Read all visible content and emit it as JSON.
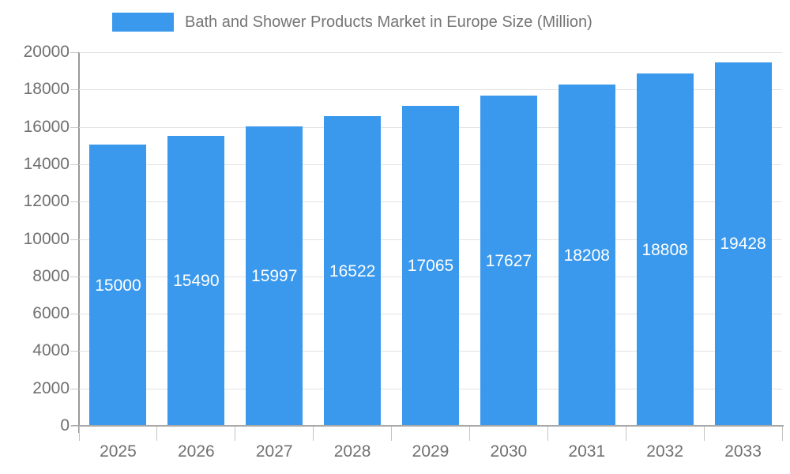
{
  "legend": {
    "label": "Bath and Shower Products Market in Europe Size (Million)"
  },
  "chart_data": {
    "type": "bar",
    "title": "Bath and Shower Products Market in Europe Size (Million)",
    "categories": [
      "2025",
      "2026",
      "2027",
      "2028",
      "2029",
      "2030",
      "2031",
      "2032",
      "2033"
    ],
    "values": [
      15000,
      15490,
      15997,
      16522,
      17065,
      17627,
      18208,
      18808,
      19428
    ],
    "xlabel": "",
    "ylabel": "",
    "ylim": [
      0,
      20000
    ],
    "ytick_step": 2000,
    "grid": true,
    "legend_position": "top",
    "bar_color": "#3a99ec",
    "value_label_color": "#ffffff",
    "axis_text_color": "#707070"
  }
}
